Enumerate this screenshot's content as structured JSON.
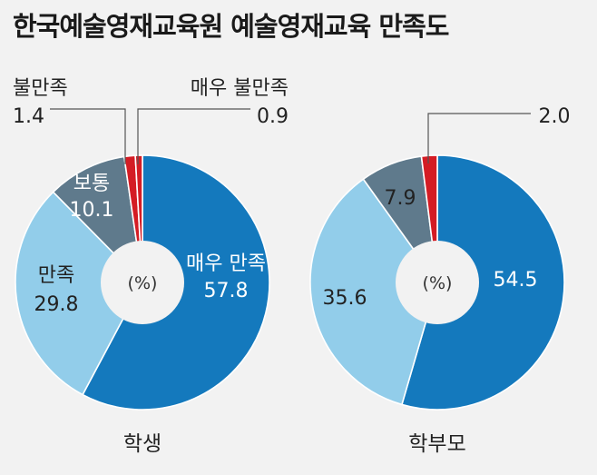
{
  "title": "한국예술영재교육원 예술영재교육 만족도",
  "unit": "(%)",
  "colors": {
    "매우 만족": "#1479bd",
    "만족": "#92cdea",
    "보통": "#5f7a8c",
    "불만족": "#d41c24",
    "매우 불만족": "#d41c24"
  },
  "chart_data": [
    {
      "type": "pie",
      "donut": true,
      "name": "학생",
      "center_label": "(%)",
      "series": [
        {
          "name": "매우 만족",
          "value": 57.8,
          "value_text": "57.8"
        },
        {
          "name": "만족",
          "value": 29.8,
          "value_text": "29.8"
        },
        {
          "name": "보통",
          "value": 10.1,
          "value_text": "10.1"
        },
        {
          "name": "불만족",
          "value": 1.4,
          "value_text": "1.4"
        },
        {
          "name": "매우 불만족",
          "value": 0.9,
          "value_text": "0.9"
        }
      ]
    },
    {
      "type": "pie",
      "donut": true,
      "name": "학부모",
      "center_label": "(%)",
      "series": [
        {
          "name": "매우 만족",
          "value": 54.5,
          "value_text": "54.5"
        },
        {
          "name": "만족",
          "value": 35.6,
          "value_text": "35.6"
        },
        {
          "name": "보통",
          "value": 7.9,
          "value_text": "7.9"
        },
        {
          "name": "불만족",
          "value": 2.0,
          "value_text": "2.0"
        }
      ]
    }
  ]
}
